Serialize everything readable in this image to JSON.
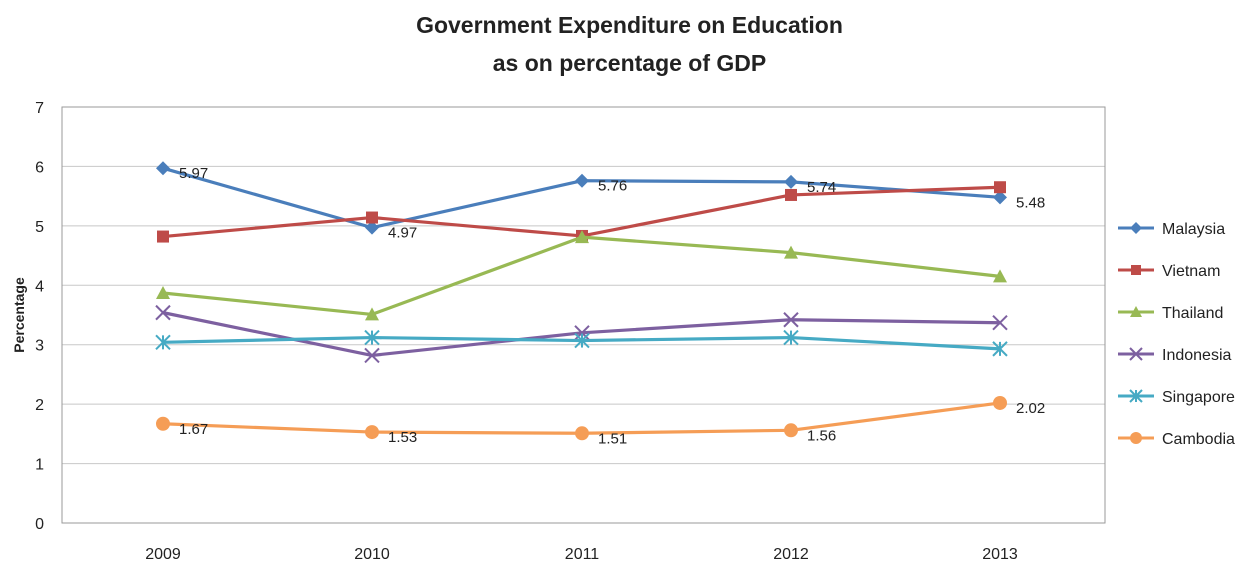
{
  "chart_data": {
    "type": "line",
    "title": [
      "Government Expenditure on Education",
      "as on percentage of GDP"
    ],
    "xlabel": "",
    "ylabel": "Percentage",
    "categories": [
      "2009",
      "2010",
      "2011",
      "2012",
      "2013"
    ],
    "ylim": [
      0,
      7
    ],
    "yticks": [
      "0",
      "1",
      "2",
      "3",
      "4",
      "5",
      "6",
      "7"
    ],
    "grid": "horizontal",
    "legend_position": "right",
    "series": [
      {
        "name": "Malaysia",
        "color": "#4a7ebb",
        "marker": "diamond",
        "values": [
          5.97,
          4.97,
          5.76,
          5.74,
          5.48
        ],
        "labels": [
          "5.97",
          "4.97",
          "5.76",
          "5.74",
          "5.48"
        ]
      },
      {
        "name": "Vietnam",
        "color": "#be4b48",
        "marker": "square",
        "values": [
          4.82,
          5.14,
          4.83,
          5.52,
          5.65
        ],
        "labels": [
          "",
          "",
          "",
          "",
          ""
        ]
      },
      {
        "name": "Thailand",
        "color": "#98b954",
        "marker": "triangle",
        "values": [
          3.87,
          3.51,
          4.81,
          4.55,
          4.15
        ],
        "labels": [
          "",
          "",
          "",
          "",
          ""
        ]
      },
      {
        "name": "Indonesia",
        "color": "#7d60a0",
        "marker": "x",
        "values": [
          3.54,
          2.82,
          3.2,
          3.42,
          3.37
        ],
        "labels": [
          "",
          "",
          "",
          "",
          ""
        ]
      },
      {
        "name": "Singapore",
        "color": "#46aac4",
        "marker": "star",
        "values": [
          3.04,
          3.12,
          3.07,
          3.12,
          2.93
        ],
        "labels": [
          "",
          "",
          "",
          "",
          ""
        ]
      },
      {
        "name": "Cambodia",
        "color": "#f59d56",
        "marker": "circle",
        "values": [
          1.67,
          1.53,
          1.51,
          1.56,
          2.02
        ],
        "labels": [
          "1.67",
          "1.53",
          "1.51",
          "1.56",
          "2.02"
        ]
      }
    ]
  }
}
